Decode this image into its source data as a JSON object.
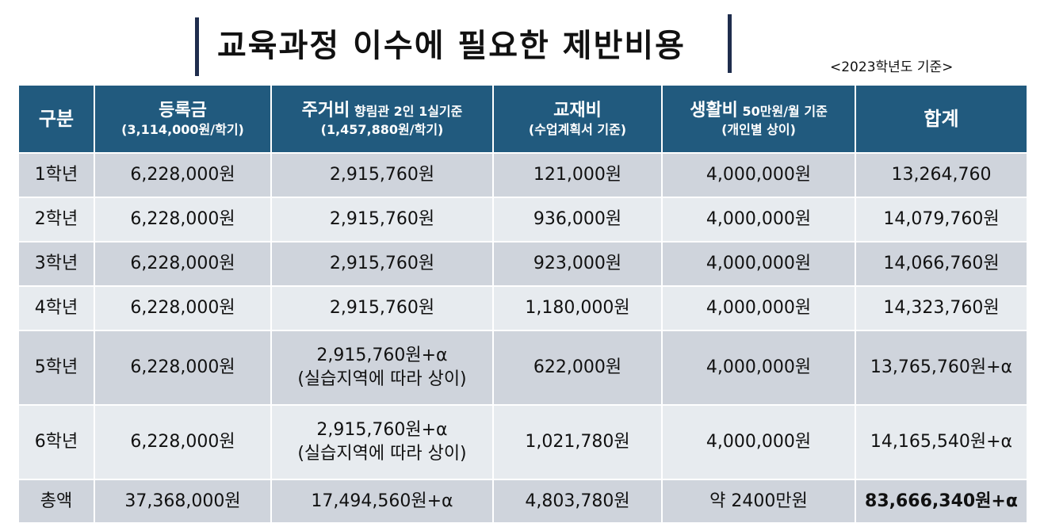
{
  "title": "교육과정 이수에 필요한 제반비용",
  "basis_note": "<2023학년도 기준>",
  "headers": {
    "category": "구분",
    "tuition": {
      "label": "등록금",
      "sub": "(3,114,000원/학기)"
    },
    "housing": {
      "label": "주거비",
      "suffix": " 향림관 2인 1실기준",
      "sub": "(1,457,880원/학기)"
    },
    "materials": {
      "label": "교재비",
      "sub": "(수업계획서 기준)"
    },
    "living": {
      "label": "생활비",
      "suffix": " 50만원/월 기준",
      "sub": "(개인별 상이)"
    },
    "total": "합계"
  },
  "rows": [
    {
      "grade": "1학년",
      "tuition": "6,228,000원",
      "housing": "2,915,760원",
      "housing_note": "",
      "materials": "121,000원",
      "living": "4,000,000원",
      "total": "13,264,760"
    },
    {
      "grade": "2학년",
      "tuition": "6,228,000원",
      "housing": "2,915,760원",
      "housing_note": "",
      "materials": "936,000원",
      "living": "4,000,000원",
      "total": "14,079,760원"
    },
    {
      "grade": "3학년",
      "tuition": "6,228,000원",
      "housing": "2,915,760원",
      "housing_note": "",
      "materials": "923,000원",
      "living": "4,000,000원",
      "total": "14,066,760원"
    },
    {
      "grade": "4학년",
      "tuition": "6,228,000원",
      "housing": "2,915,760원",
      "housing_note": "",
      "materials": "1,180,000원",
      "living": "4,000,000원",
      "total": "14,323,760원"
    },
    {
      "grade": "5학년",
      "tuition": "6,228,000원",
      "housing": "2,915,760원+α",
      "housing_note": "(실습지역에 따라 상이)",
      "materials": "622,000원",
      "living": "4,000,000원",
      "total": "13,765,760원+α"
    },
    {
      "grade": "6학년",
      "tuition": "6,228,000원",
      "housing": "2,915,760원+α",
      "housing_note": "(실습지역에 따라 상이)",
      "materials": "1,021,780원",
      "living": "4,000,000원",
      "total": "14,165,540원+α"
    }
  ],
  "totals": {
    "label": "총액",
    "tuition": "37,368,000원",
    "housing": "17,494,560원+α",
    "materials": "4,803,780원",
    "living": "약 2400만원",
    "total": "83,666,340원+α"
  }
}
